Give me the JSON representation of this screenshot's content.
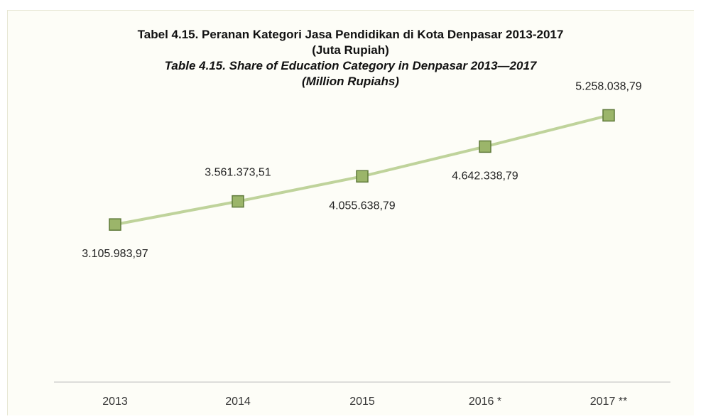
{
  "chart_data": {
    "type": "line",
    "title_id_line1": "Tabel 4.15. Peranan Kategori Jasa Pendidikan di Kota Denpasar 2013-2017",
    "title_id_line2": "(Juta Rupiah)",
    "title_en_line1": "Table 4.15.  Share of Education  Category in Denpasar 2013—2017",
    "title_en_line2": "(Million  Rupiahs)",
    "categories": [
      "2013",
      "2014",
      "2015",
      "2016 *",
      "2017 **"
    ],
    "values": [
      3105983.97,
      3561373.51,
      4055638.79,
      4642338.79,
      5258038.79
    ],
    "value_labels": [
      "3.105.983,97",
      "3.561.373,51",
      "4.055.638,79",
      "4.642.338,79",
      "5.258.038,79"
    ],
    "label_position": [
      "below",
      "above",
      "below",
      "below",
      "above"
    ],
    "ylim": [
      0,
      7000000
    ],
    "grid": false,
    "line_color": "#bfd39b",
    "marker_color": "#9bb56a",
    "marker_edge_color": "#5f7a3a"
  }
}
